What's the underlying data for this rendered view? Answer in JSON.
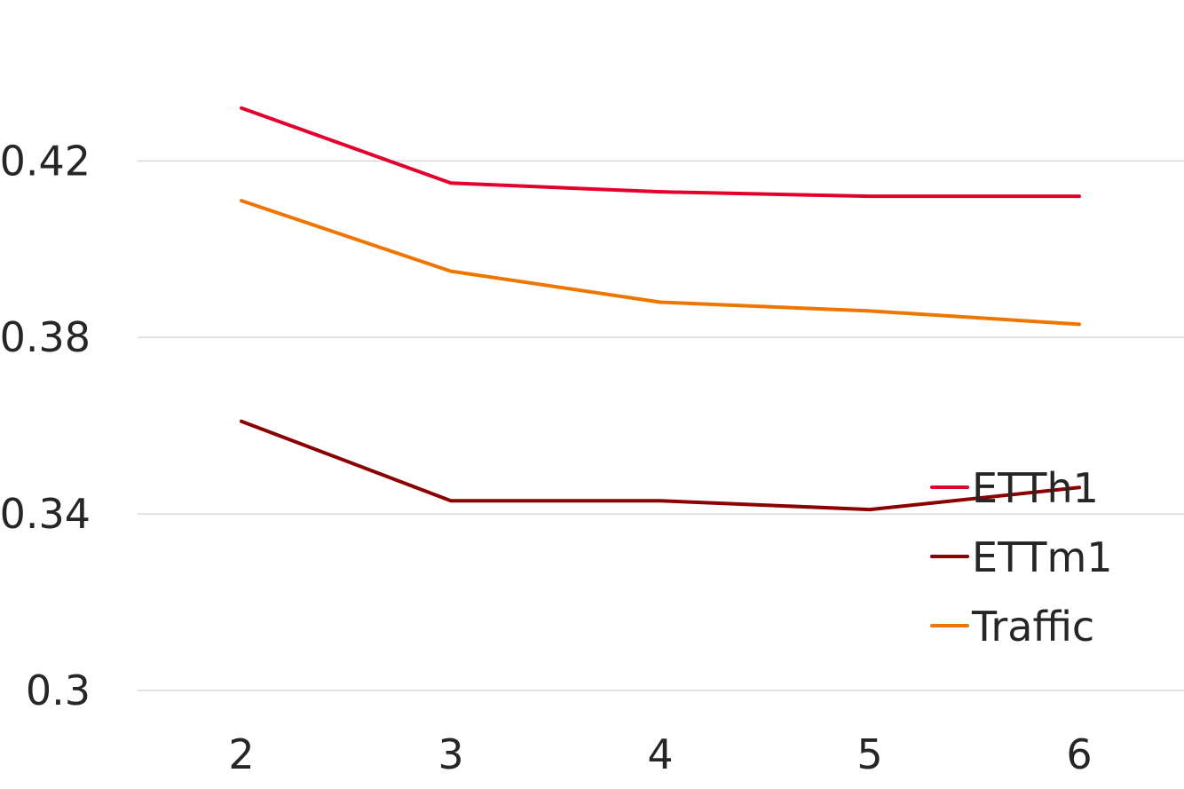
{
  "chart_data": {
    "type": "line",
    "x": [
      2,
      3,
      4,
      5,
      6
    ],
    "categories": [
      "2",
      "3",
      "4",
      "5",
      "6"
    ],
    "ylim": [
      0.3,
      0.44
    ],
    "yticks": [
      0.3,
      0.34,
      0.38,
      0.42
    ],
    "ytick_labels": [
      "0.3",
      "0.34",
      "0.38",
      "0.42"
    ],
    "grid": true,
    "legend_position": "right",
    "series": [
      {
        "name": "ETTh1",
        "color": "#e3002d",
        "values": [
          0.432,
          0.415,
          0.413,
          0.412,
          0.412
        ]
      },
      {
        "name": "ETTm1",
        "color": "#8b0000",
        "values": [
          0.361,
          0.343,
          0.343,
          0.341,
          0.346
        ]
      },
      {
        "name": "Traffic",
        "color": "#ee7600",
        "values": [
          0.411,
          0.395,
          0.388,
          0.386,
          0.383
        ]
      }
    ]
  }
}
